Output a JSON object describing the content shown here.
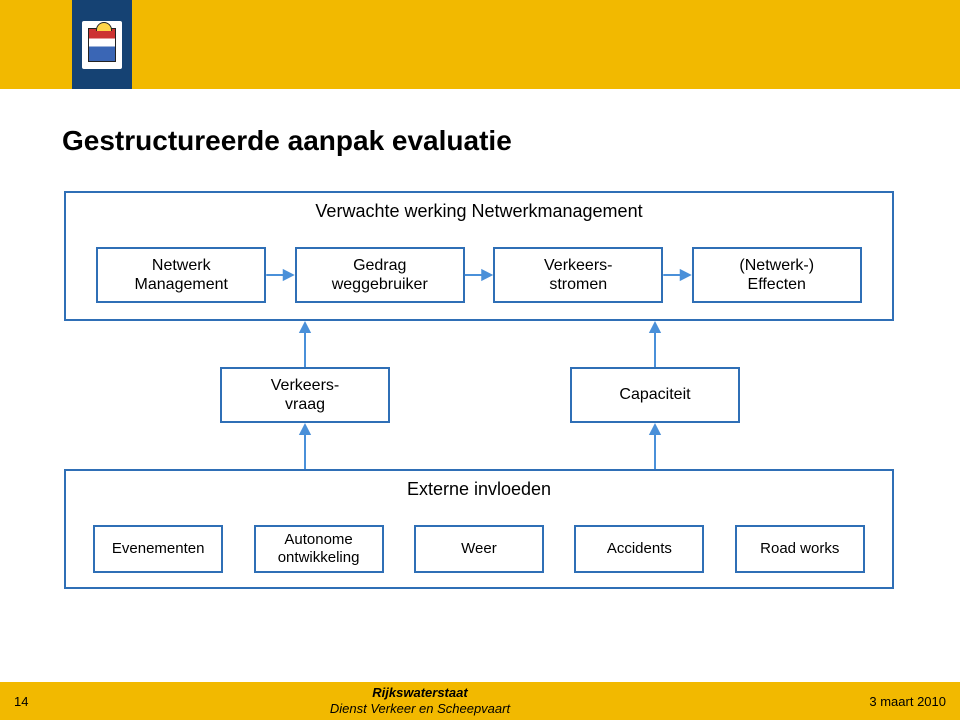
{
  "colors": {
    "page_bg": "#f2b900",
    "content_bg": "#ffffff",
    "brand_blue": "#154273",
    "box_border": "#2f6fb6",
    "arrow": "#4a90d9",
    "text": "#000000"
  },
  "logo": {
    "name": "rijksoverheid-crest"
  },
  "title": "Gestructureerde aanpak evaluatie",
  "diagram": {
    "layout": "three-row-flow",
    "panels": {
      "top": {
        "caption": "Verwachte werking Netwerkmanagement",
        "boxes": [
          {
            "id": "netwerk-management",
            "label": "Netwerk\nManagement"
          },
          {
            "id": "gedrag-weggebruiker",
            "label": "Gedrag\nweggebruiker"
          },
          {
            "id": "verkeers-stromen",
            "label": "Verkeers-\nstromen"
          },
          {
            "id": "netwerk-effecten",
            "label": "(Netwerk-)\nEffecten"
          }
        ]
      },
      "middle": {
        "boxes": [
          {
            "id": "verkeersvraag",
            "label": "Verkeers-\nvraag"
          },
          {
            "id": "capaciteit",
            "label": "Capaciteit"
          }
        ]
      },
      "bottom": {
        "caption": "Externe invloeden",
        "boxes": [
          {
            "id": "evenementen",
            "label": "Evenementen"
          },
          {
            "id": "autonome-ontwikkeling",
            "label": "Autonome\nontwikkeling"
          },
          {
            "id": "weer",
            "label": "Weer"
          },
          {
            "id": "accidents",
            "label": "Accidents"
          },
          {
            "id": "road-works",
            "label": "Road works"
          }
        ]
      }
    },
    "arrows": {
      "stroke": "#4a90d9",
      "stroke_width": 2,
      "head": {
        "w": 12,
        "h": 8
      },
      "edges": [
        {
          "from": "netwerk-management",
          "to": "gedrag-weggebruiker",
          "dir": "right"
        },
        {
          "from": "gedrag-weggebruiker",
          "to": "verkeers-stromen",
          "dir": "right"
        },
        {
          "from": "verkeers-stromen",
          "to": "netwerk-effecten",
          "dir": "right"
        },
        {
          "from": "verkeersvraag",
          "to": "panel-top",
          "dir": "up"
        },
        {
          "from": "capaciteit",
          "to": "panel-top",
          "dir": "up"
        },
        {
          "from": "panel-bottom",
          "to": "verkeersvraag",
          "dir": "up"
        },
        {
          "from": "panel-bottom",
          "to": "capaciteit",
          "dir": "up"
        }
      ]
    }
  },
  "footer": {
    "page": "14",
    "org": "Rijkswaterstaat",
    "dept": "Dienst Verkeer en Scheepvaart",
    "date": "3 maart 2010"
  },
  "typography": {
    "title_fontsize": 28,
    "box_fontsize": 16,
    "footer_fontsize": 13
  }
}
